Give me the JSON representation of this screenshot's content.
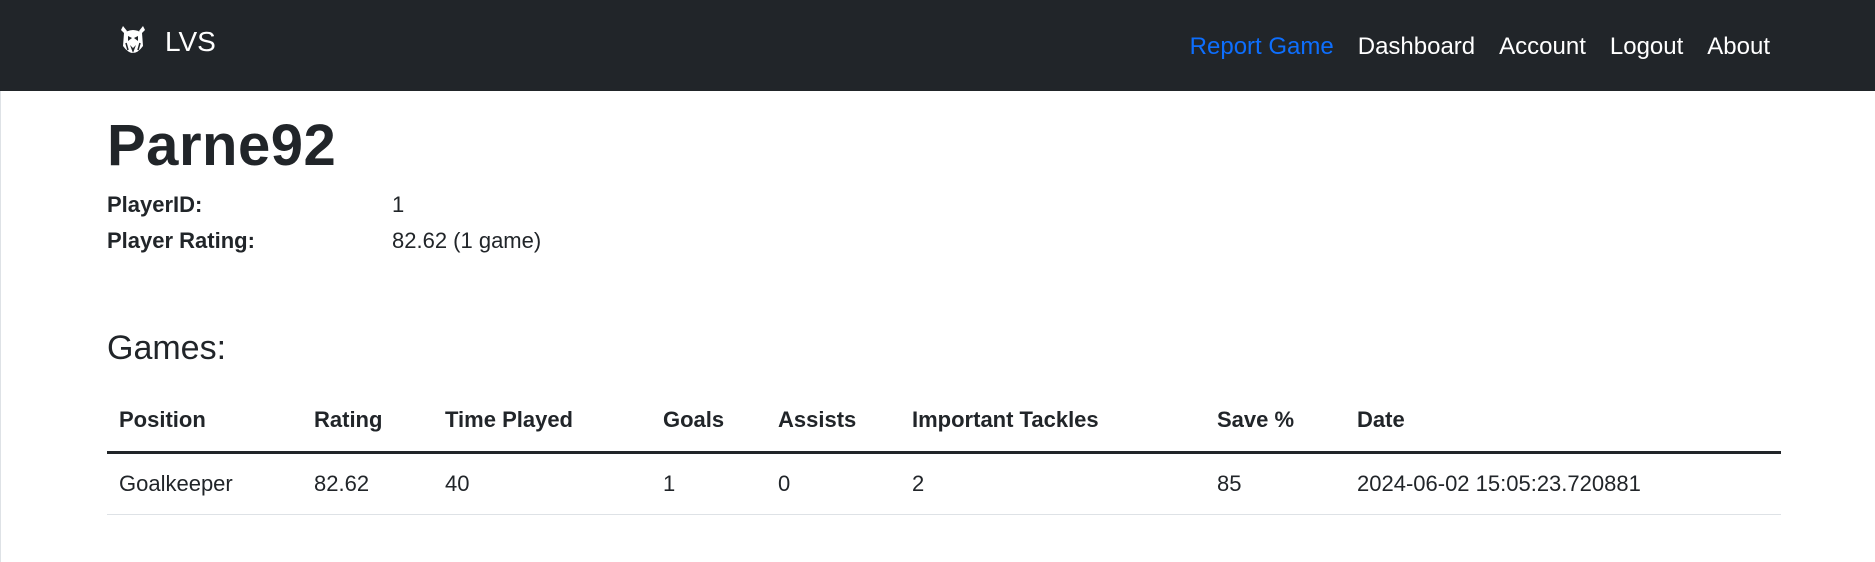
{
  "navbar": {
    "brand": {
      "text": "LVS",
      "logo_icon": "knight-crest-icon"
    },
    "links": [
      {
        "label": "Report Game",
        "active": true
      },
      {
        "label": "Dashboard",
        "active": false
      },
      {
        "label": "Account",
        "active": false
      },
      {
        "label": "Logout",
        "active": false
      },
      {
        "label": "About",
        "active": false
      }
    ]
  },
  "player": {
    "name": "Parne92",
    "id_label": "PlayerID:",
    "id_value": "1",
    "rating_label": "Player Rating:",
    "rating_value": "82.62 (1 game)"
  },
  "games": {
    "title": "Games:",
    "columns": [
      "Position",
      "Rating",
      "Time Played",
      "Goals",
      "Assists",
      "Important Tackles",
      "Save %",
      "Date"
    ],
    "rows": [
      [
        "Goalkeeper",
        "82.62",
        "40",
        "1",
        "0",
        "2",
        "85",
        "2024-06-02 15:05:23.720881"
      ]
    ]
  },
  "colors": {
    "navbar_bg": "#212529",
    "active_link": "#0d6efd",
    "text": "#212529"
  }
}
